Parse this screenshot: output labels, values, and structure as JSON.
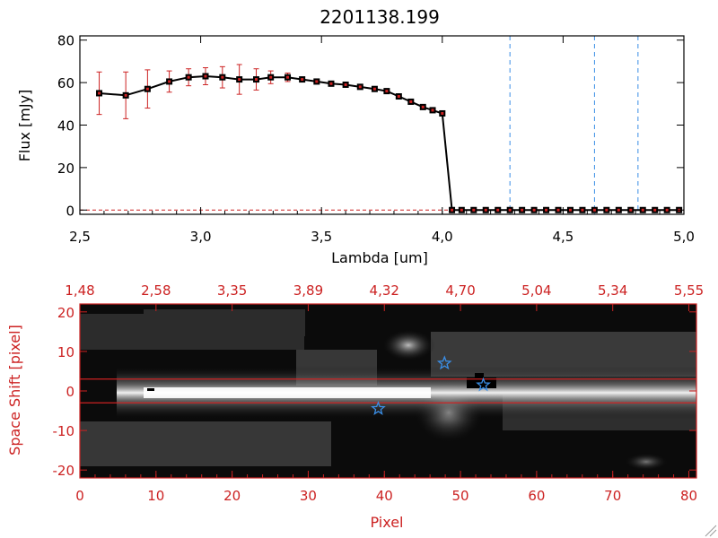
{
  "chart_data": [
    {
      "type": "scatter",
      "title": "2201138.199",
      "xlabel": "Lambda [um]",
      "ylabel": "Flux [mJy]",
      "xlim": [
        2.5,
        5.0
      ],
      "ylim": [
        -2,
        82
      ],
      "xticks": [
        "2.5",
        "3.0",
        "3.5",
        "4.0",
        "4.5",
        "5.0"
      ],
      "yticks": [
        "0",
        "20",
        "40",
        "60",
        "80"
      ],
      "colors": {
        "line": "#000000",
        "marker": "#000000",
        "errorbar": "#cc2222",
        "vline": "#3a8ee6",
        "hline": "#cc2222"
      },
      "series": [
        {
          "name": "flux",
          "x": [
            2.58,
            2.69,
            2.78,
            2.87,
            2.95,
            3.02,
            3.09,
            3.16,
            3.23,
            3.29,
            3.36,
            3.42,
            3.48,
            3.54,
            3.6,
            3.66,
            3.72,
            3.77,
            3.82,
            3.87,
            3.92,
            3.96,
            4.0,
            4.04,
            4.08,
            4.13,
            4.18,
            4.23,
            4.28,
            4.33,
            4.38,
            4.43,
            4.48,
            4.53,
            4.58,
            4.63,
            4.68,
            4.73,
            4.78,
            4.83,
            4.88,
            4.93,
            4.98
          ],
          "y": [
            55,
            54,
            57,
            60.5,
            62.5,
            63,
            62.5,
            61.5,
            61.5,
            62.5,
            62.5,
            61.5,
            60.5,
            59.5,
            59,
            58,
            57,
            56,
            53.5,
            51,
            48.5,
            47,
            45.5,
            0,
            0,
            0,
            0,
            0,
            0,
            0,
            0,
            0,
            0,
            0,
            0,
            0,
            0,
            0,
            0,
            0,
            0,
            0,
            0
          ],
          "yerr": [
            10,
            11,
            9,
            5,
            4,
            4,
            5,
            7,
            5,
            3,
            2,
            1,
            1,
            1,
            1,
            1,
            1,
            1,
            1,
            1,
            1,
            1,
            1,
            1,
            1,
            1,
            1,
            1,
            1,
            1,
            1,
            1,
            1,
            1,
            1,
            1,
            1,
            1,
            1,
            1,
            1,
            1,
            1
          ]
        }
      ],
      "vlines": [
        4.28,
        4.63,
        4.81
      ],
      "hline": 0
    },
    {
      "type": "heatmap",
      "xlabel": "Pixel",
      "ylabel": "Space Shift [pixel]",
      "xlim": [
        0,
        81
      ],
      "ylim": [
        -22,
        22
      ],
      "xticks": [
        "0",
        "10",
        "20",
        "30",
        "40",
        "50",
        "60",
        "70",
        "80"
      ],
      "yticks": [
        "-20",
        "-10",
        "0",
        "10",
        "20"
      ],
      "top_axis_ticks": [
        "1.48",
        "2.58",
        "3.35",
        "3.89",
        "4.32",
        "4.70",
        "5.04",
        "5.34",
        "5.55"
      ],
      "aperture_rows": [
        3,
        -3
      ],
      "stars": [
        {
          "pixel": 39.2,
          "shift": -4.5
        },
        {
          "pixel": 47.9,
          "shift": 7.0
        },
        {
          "pixel": 53.0,
          "shift": 1.5
        }
      ]
    }
  ]
}
